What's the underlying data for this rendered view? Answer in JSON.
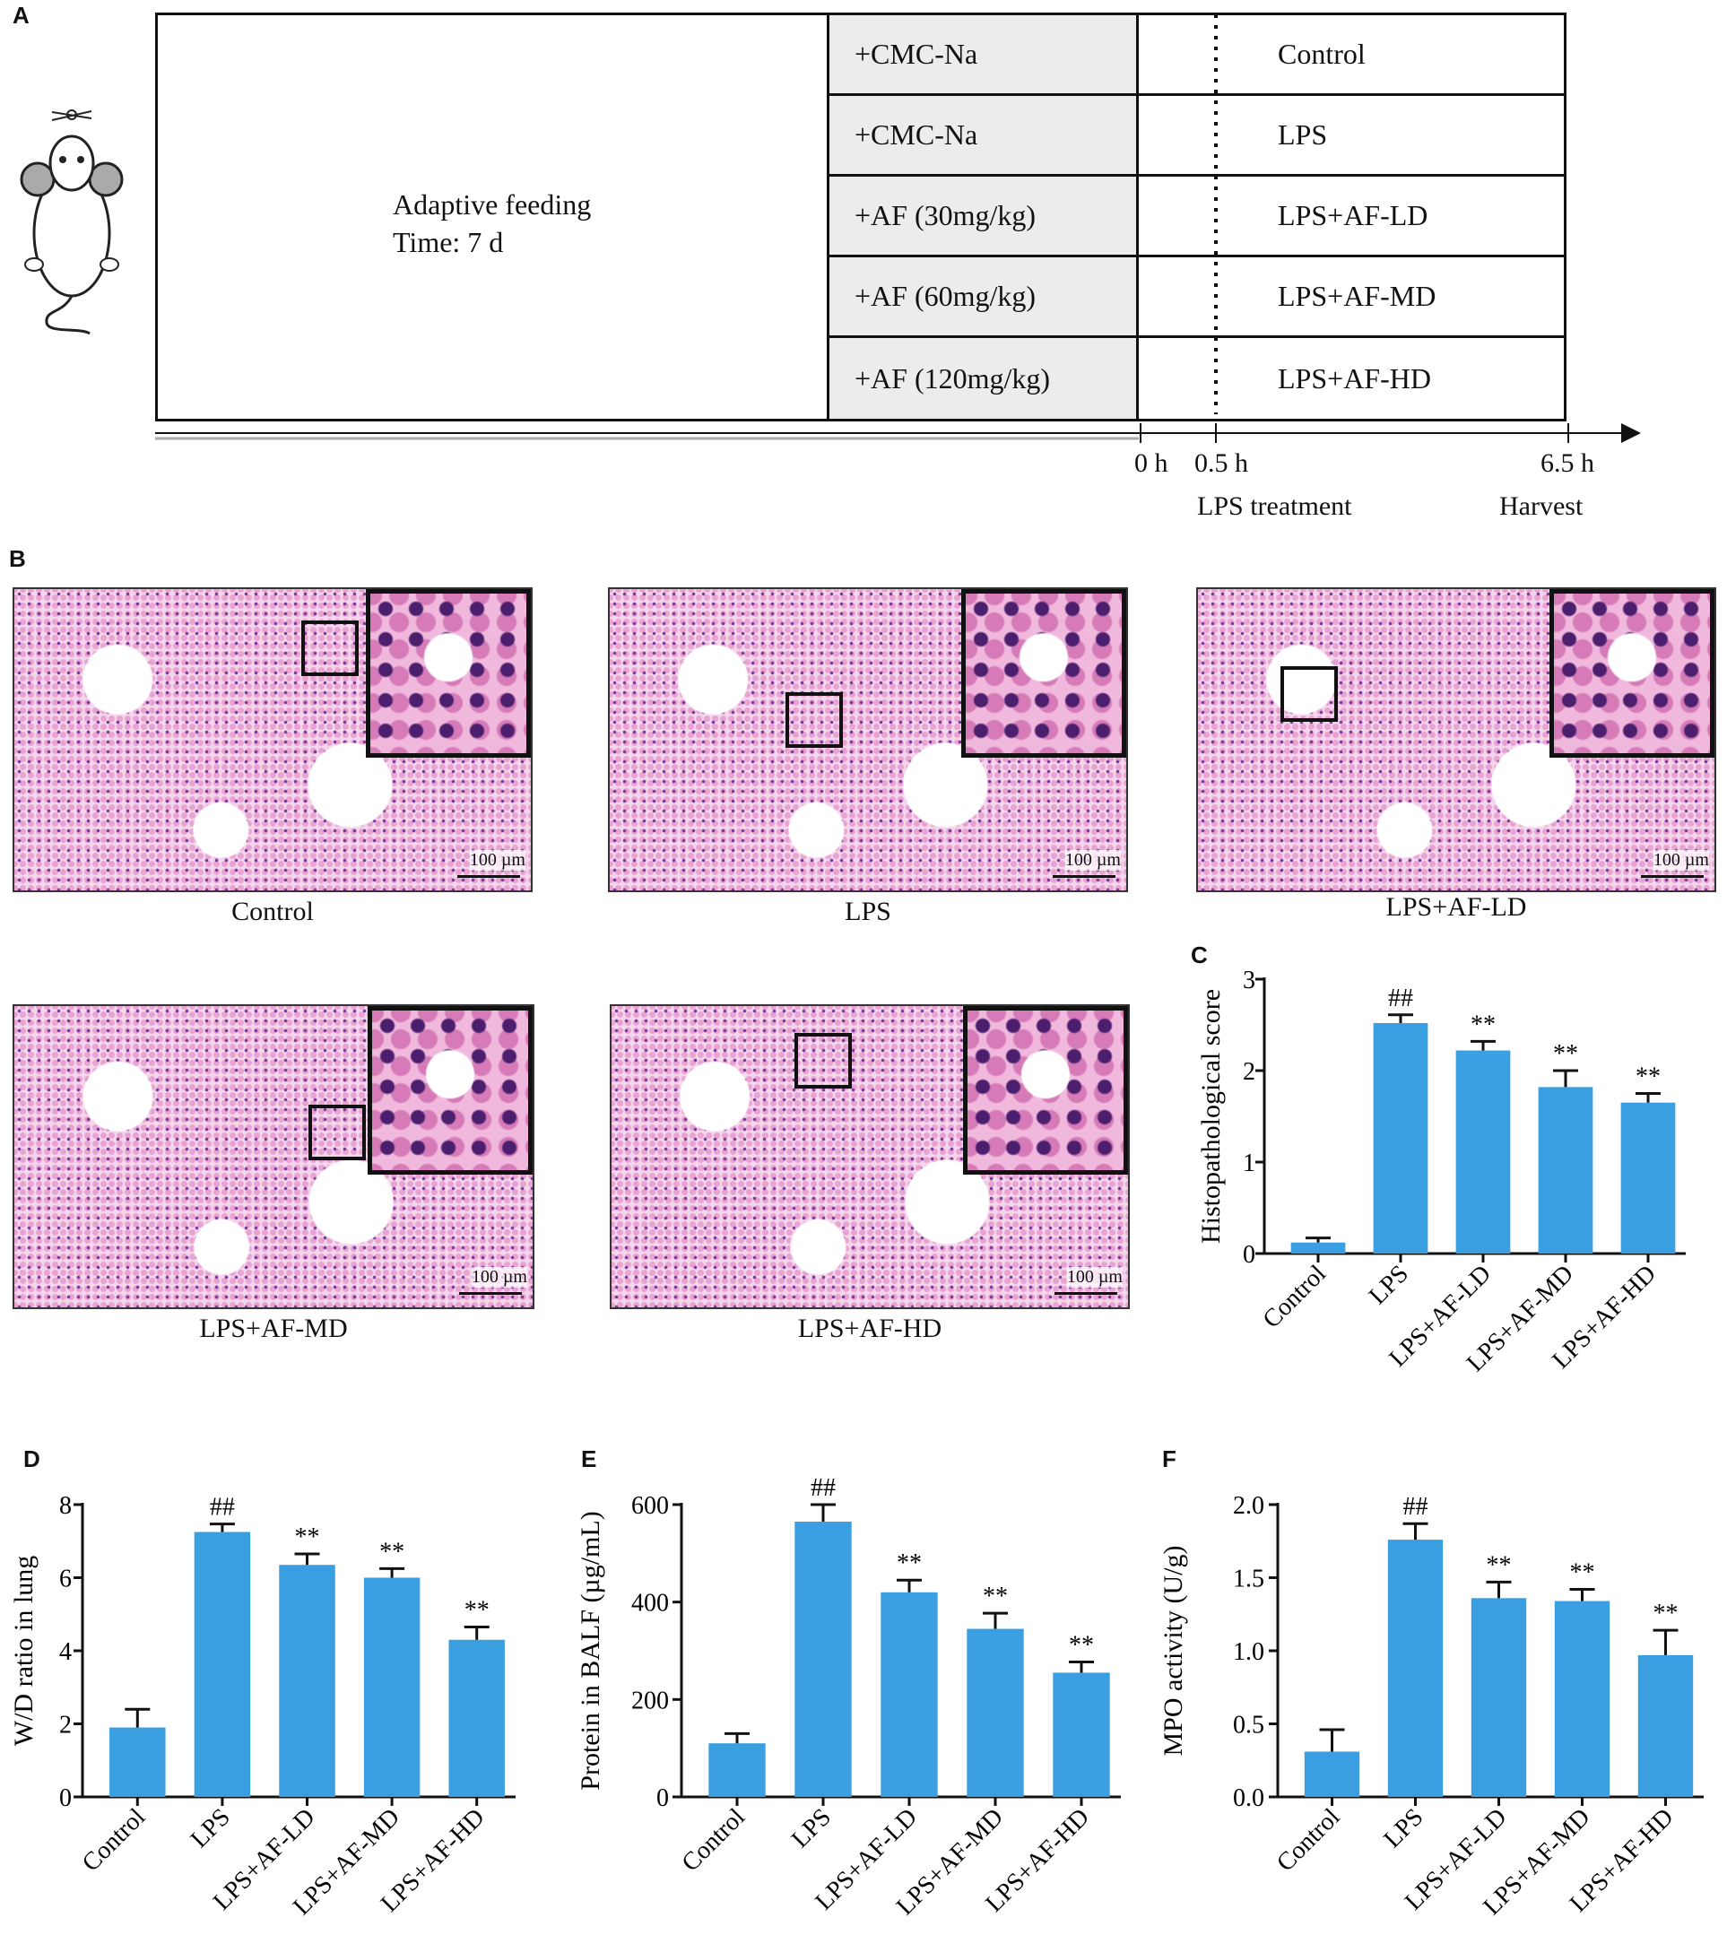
{
  "panels": {
    "A": "A",
    "B": "B",
    "C": "C",
    "D": "D",
    "E": "E",
    "F": "F"
  },
  "design": {
    "adaptive_line1": "Adaptive feeding",
    "adaptive_line2": "Time: 7 d",
    "rows": [
      {
        "treatment": "+CMC-Na",
        "group": "Control"
      },
      {
        "treatment": "+CMC-Na",
        "group": "LPS"
      },
      {
        "treatment": "+AF (30mg/kg)",
        "group": "LPS+AF-LD"
      },
      {
        "treatment": "+AF (60mg/kg)",
        "group": "LPS+AF-MD"
      },
      {
        "treatment": "+AF (120mg/kg)",
        "group": "LPS+AF-HD"
      }
    ],
    "timeline": {
      "t0": "0 h",
      "t1": "0.5 h",
      "t2": "6.5 h",
      "lps": "LPS treatment",
      "harvest": "Harvest"
    }
  },
  "histology": {
    "scale": "100 µm",
    "captions": [
      "Control",
      "LPS",
      "LPS+AF-LD",
      "LPS+AF-MD",
      "LPS+AF-HD"
    ]
  },
  "colors": {
    "bar": "#3a9fe0",
    "axis": "#111111"
  },
  "chart_data": [
    {
      "panel": "C",
      "type": "bar",
      "categories": [
        "Control",
        "LPS",
        "LPS+AF-LD",
        "LPS+AF-MD",
        "LPS+AF-HD"
      ],
      "values": [
        0.12,
        2.52,
        2.22,
        1.82,
        1.65
      ],
      "errors": [
        0.05,
        0.09,
        0.1,
        0.18,
        0.1
      ],
      "annotations": [
        "",
        "##",
        "**",
        "**",
        "**"
      ],
      "ylabel": "Histopathological score",
      "ylim": [
        0,
        3
      ],
      "ticks": [
        0,
        1,
        2,
        3
      ],
      "tick_labels": [
        "0",
        "1",
        "2",
        "3"
      ]
    },
    {
      "panel": "D",
      "type": "bar",
      "categories": [
        "Control",
        "LPS",
        "LPS+AF-LD",
        "LPS+AF-MD",
        "LPS+AF-HD"
      ],
      "values": [
        1.9,
        7.25,
        6.35,
        6.0,
        4.3
      ],
      "errors": [
        0.5,
        0.22,
        0.3,
        0.25,
        0.35
      ],
      "annotations": [
        "",
        "##",
        "**",
        "**",
        "**"
      ],
      "ylabel": "W/D ratio in lung",
      "ylim": [
        0,
        8
      ],
      "ticks": [
        0,
        2,
        4,
        6,
        8
      ],
      "tick_labels": [
        "0",
        "2",
        "4",
        "6",
        "8"
      ]
    },
    {
      "panel": "E",
      "type": "bar",
      "categories": [
        "Control",
        "LPS",
        "LPS+AF-LD",
        "LPS+AF-MD",
        "LPS+AF-HD"
      ],
      "values": [
        110,
        565,
        420,
        345,
        255
      ],
      "errors": [
        20,
        35,
        25,
        32,
        22
      ],
      "annotations": [
        "",
        "##",
        "**",
        "**",
        "**"
      ],
      "ylabel": "Protein in BALF (µg/mL)",
      "ylim": [
        0,
        600
      ],
      "ticks": [
        0,
        200,
        400,
        600
      ],
      "tick_labels": [
        "0",
        "200",
        "400",
        "600"
      ]
    },
    {
      "panel": "F",
      "type": "bar",
      "categories": [
        "Control",
        "LPS",
        "LPS+AF-LD",
        "LPS+AF-MD",
        "LPS+AF-HD"
      ],
      "values": [
        0.31,
        1.76,
        1.36,
        1.34,
        0.97
      ],
      "errors": [
        0.15,
        0.11,
        0.11,
        0.08,
        0.17
      ],
      "annotations": [
        "",
        "##",
        "**",
        "**",
        "**"
      ],
      "ylabel": "MPO activity (U/g)",
      "ylim": [
        0,
        2
      ],
      "ticks": [
        0,
        0.5,
        1,
        1.5,
        2
      ],
      "tick_labels": [
        "0.0",
        "0.5",
        "1.0",
        "1.5",
        "2.0"
      ]
    }
  ]
}
